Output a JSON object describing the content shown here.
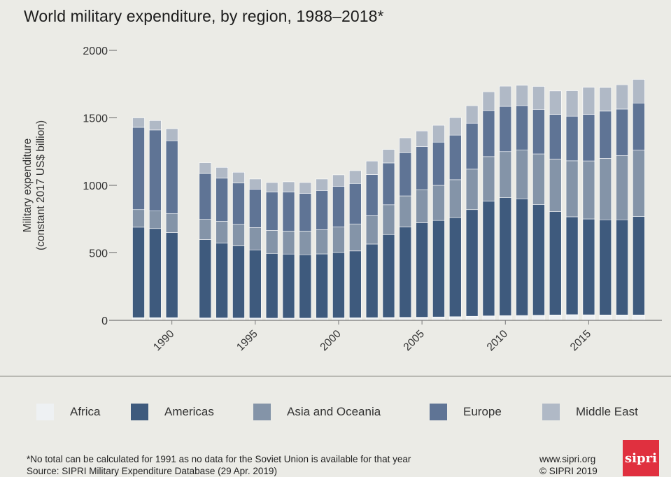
{
  "title": "World military expenditure, by region, 1988–2018*",
  "legend": [
    {
      "label": "Africa",
      "color": "#eef1f3"
    },
    {
      "label": "Americas",
      "color": "#3e5a7d"
    },
    {
      "label": "Asia and Oceania",
      "color": "#8494a8"
    },
    {
      "label": "Europe",
      "color": "#5f7495"
    },
    {
      "label": "Middle East",
      "color": "#b0b9c6"
    }
  ],
  "footer": {
    "note": "*No total can be calculated for 1991 as no data for the Soviet Union is available for that year",
    "source": "Source: SIPRI Military Expenditure Database (29 Apr. 2019)",
    "website": "www.sipri.org",
    "copyright": "© SIPRI 2019",
    "logo_text": "sipri"
  },
  "chart_data": {
    "type": "bar",
    "stacked": true,
    "ylabel": "Military expenditure (constant 2017 US$ billion)",
    "ylabel_lines": [
      "Military expenditure",
      "(constant 2017 US$ billion)"
    ],
    "ylim": [
      0,
      2000
    ],
    "yticks": [
      0,
      500,
      1000,
      1500,
      2000
    ],
    "xticks": [
      1990,
      1995,
      2000,
      2005,
      2010,
      2015
    ],
    "x": [
      1988,
      1989,
      1990,
      1991,
      1992,
      1993,
      1994,
      1995,
      1996,
      1997,
      1998,
      1999,
      2000,
      2001,
      2002,
      2003,
      2004,
      2005,
      2006,
      2007,
      2008,
      2009,
      2010,
      2011,
      2012,
      2013,
      2014,
      2015,
      2016,
      2017,
      2018
    ],
    "series": [
      {
        "name": "Africa",
        "color": "#eef1f3",
        "values": [
          20,
          20,
          20,
          null,
          18,
          18,
          17,
          17,
          16,
          16,
          16,
          17,
          18,
          19,
          20,
          21,
          22,
          23,
          25,
          27,
          30,
          33,
          35,
          36,
          38,
          40,
          42,
          41,
          40,
          40,
          40
        ]
      },
      {
        "name": "Americas",
        "color": "#3e5a7d",
        "values": [
          670,
          660,
          630,
          null,
          580,
          555,
          535,
          505,
          480,
          475,
          470,
          475,
          485,
          495,
          545,
          615,
          670,
          700,
          715,
          735,
          790,
          850,
          875,
          865,
          820,
          765,
          725,
          710,
          705,
          705,
          730
        ]
      },
      {
        "name": "Asia and Oceania",
        "color": "#8494a8",
        "values": [
          130,
          130,
          140,
          null,
          150,
          160,
          160,
          165,
          170,
          170,
          175,
          180,
          190,
          200,
          210,
          220,
          230,
          245,
          260,
          280,
          300,
          330,
          340,
          360,
          375,
          390,
          415,
          430,
          455,
          475,
          490
        ]
      },
      {
        "name": "Europe",
        "color": "#5f7495",
        "values": [
          610,
          600,
          540,
          null,
          340,
          320,
          305,
          285,
          285,
          290,
          280,
          290,
          300,
          300,
          305,
          310,
          320,
          320,
          320,
          330,
          340,
          340,
          335,
          330,
          330,
          330,
          330,
          345,
          350,
          345,
          350
        ]
      },
      {
        "name": "Middle East",
        "color": "#b0b9c6",
        "values": [
          70,
          70,
          90,
          null,
          80,
          80,
          80,
          75,
          70,
          75,
          80,
          85,
          85,
          95,
          100,
          100,
          110,
          115,
          125,
          130,
          130,
          140,
          150,
          150,
          170,
          175,
          190,
          200,
          175,
          180,
          175
        ]
      }
    ]
  }
}
